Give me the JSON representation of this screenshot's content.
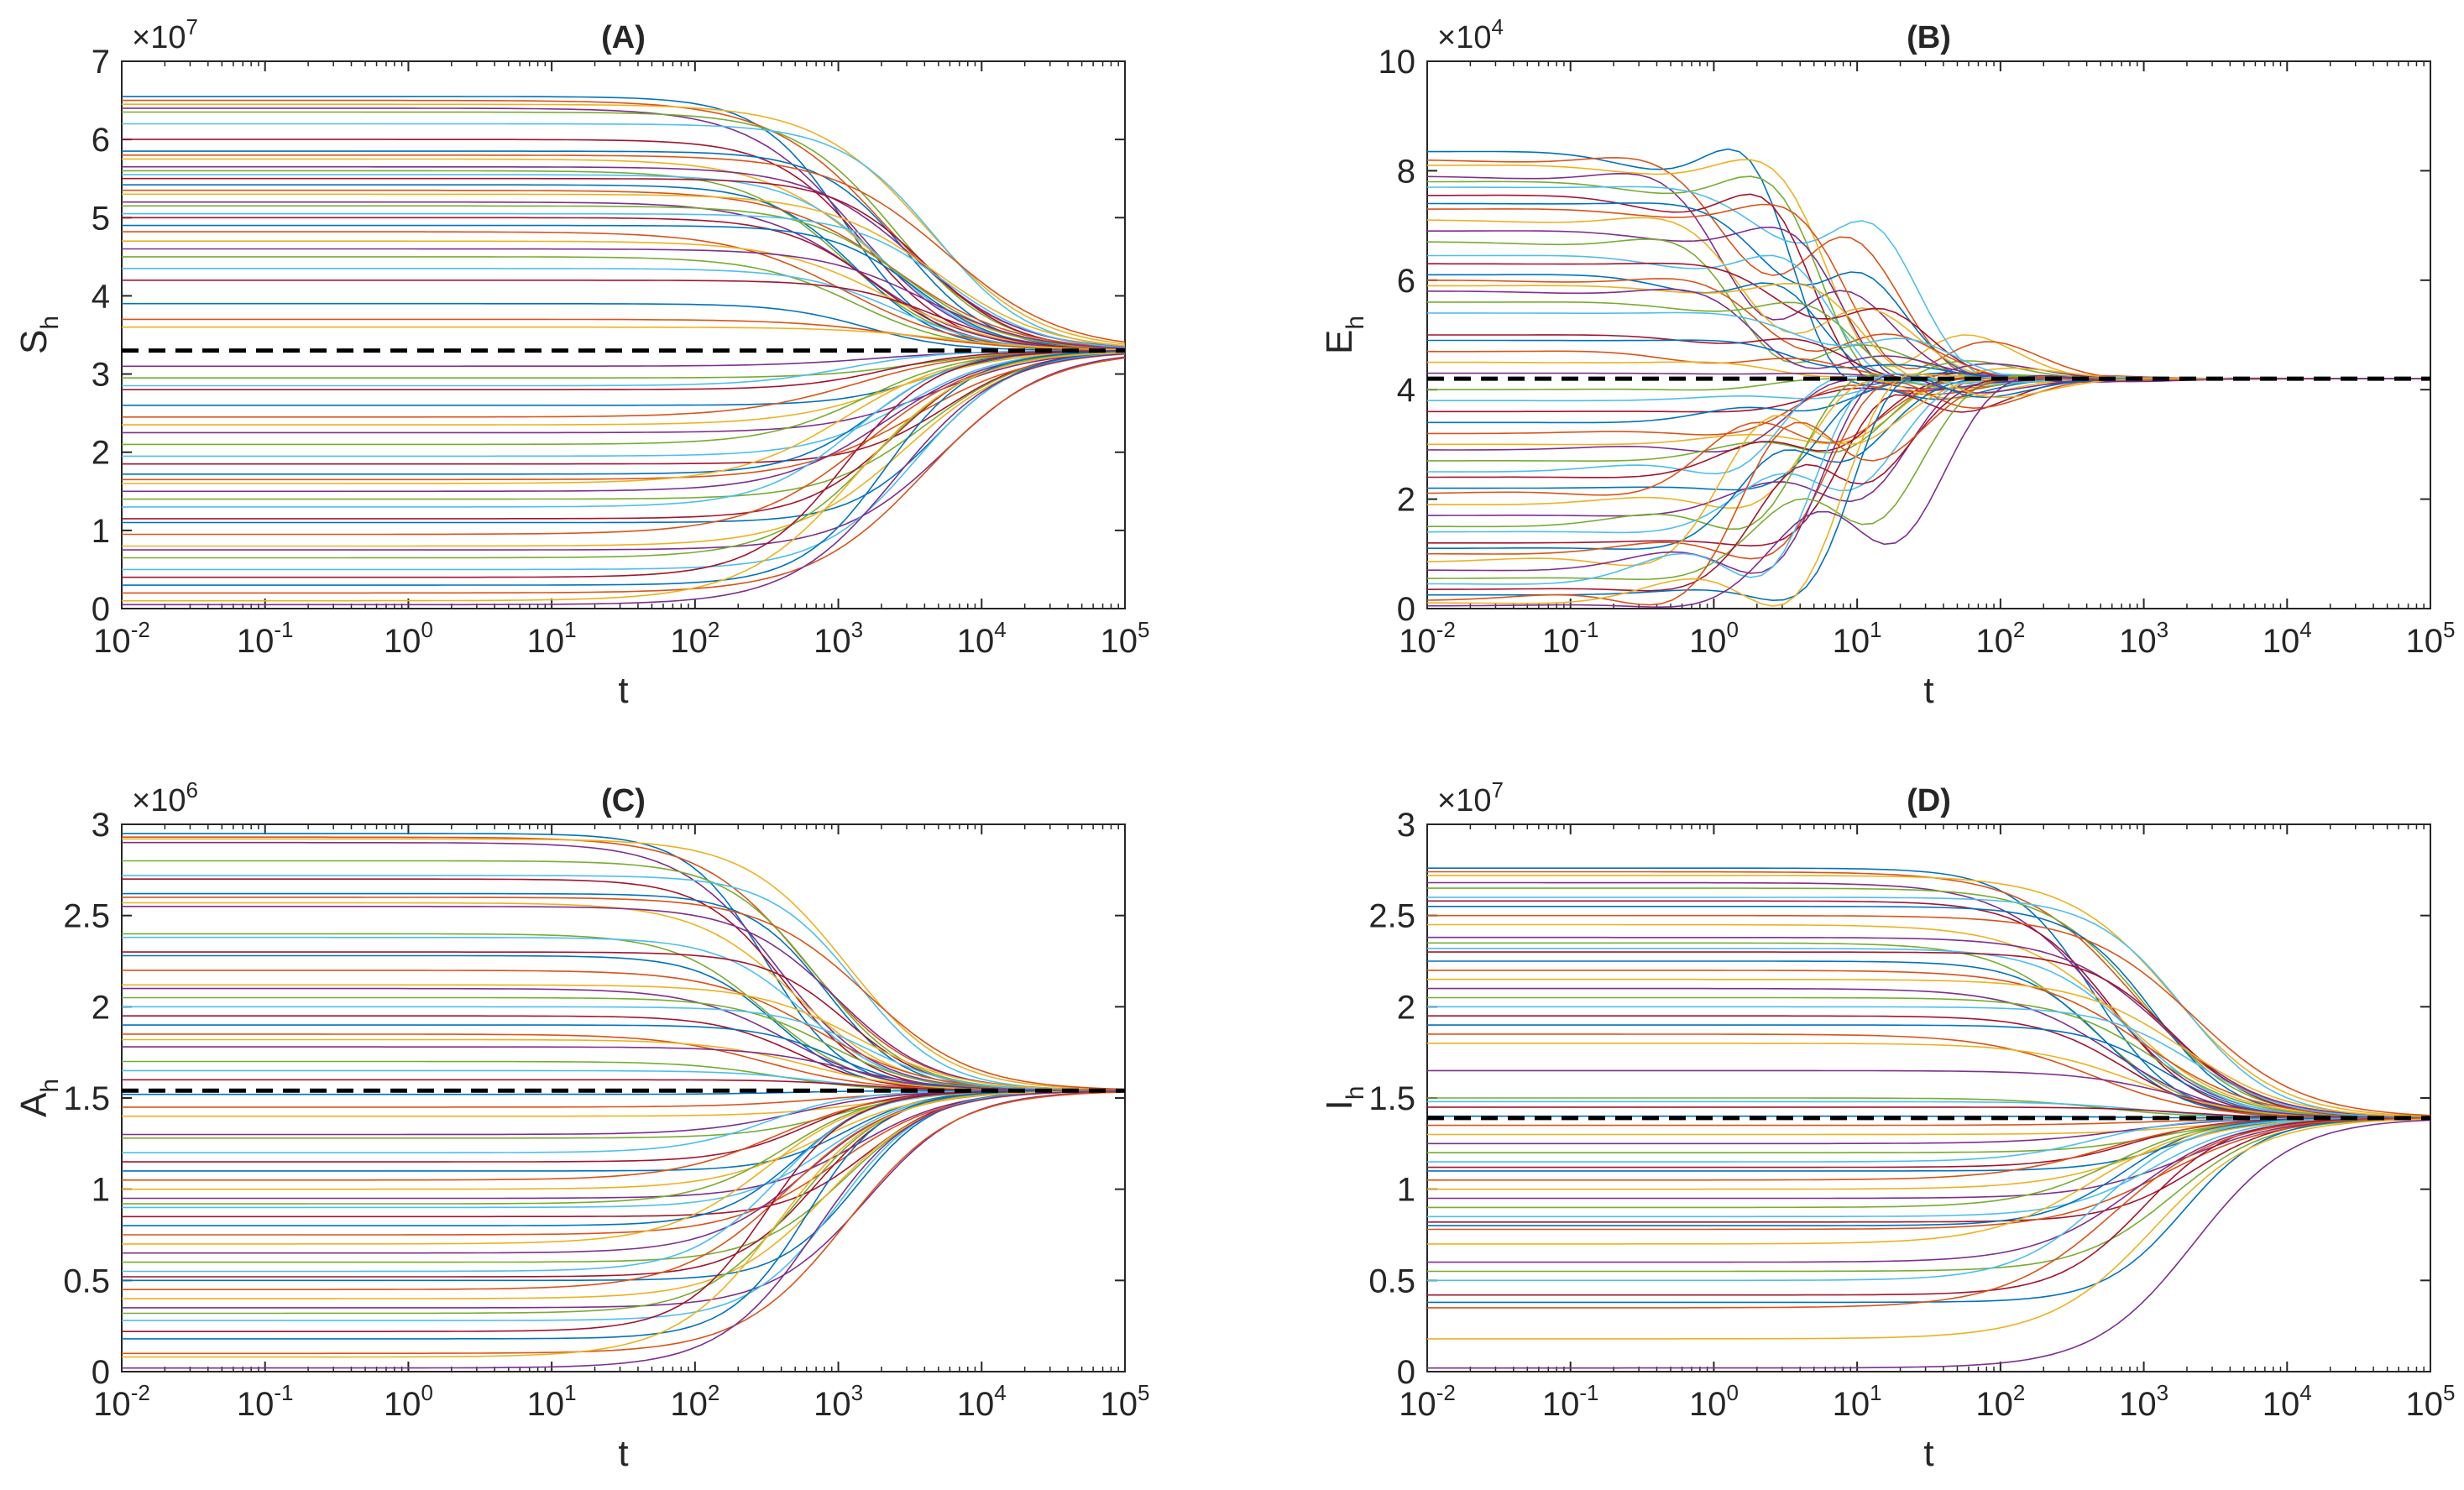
{
  "chart_data": [
    {
      "panel": "A",
      "type": "line",
      "title": "(A)",
      "xlabel": "t",
      "ylabel_main": "S",
      "ylabel_sub": "h",
      "xscale": "log",
      "xlim_exp": [
        -2,
        5
      ],
      "x_ticks": [
        {
          "base": "10",
          "exp": "-2"
        },
        {
          "base": "10",
          "exp": "-1"
        },
        {
          "base": "10",
          "exp": "0"
        },
        {
          "base": "10",
          "exp": "1"
        },
        {
          "base": "10",
          "exp": "2"
        },
        {
          "base": "10",
          "exp": "3"
        },
        {
          "base": "10",
          "exp": "4"
        },
        {
          "base": "10",
          "exp": "5"
        }
      ],
      "ylim": [
        0,
        7
      ],
      "y_ticks": [
        "0",
        "1",
        "2",
        "3",
        "4",
        "5",
        "6",
        "7"
      ],
      "multiplier": {
        "base": "×10",
        "exp": "7"
      },
      "equilibrium": 3.3,
      "transition": {
        "center_exp": 3.4,
        "width": 0.35
      },
      "series_initial_values": [
        6.55,
        6.5,
        6.45,
        6.4,
        6.35,
        6.2,
        6.0,
        5.85,
        5.8,
        5.75,
        5.65,
        5.6,
        5.55,
        5.5,
        5.42,
        5.35,
        5.3,
        5.2,
        5.15,
        5.05,
        5.0,
        4.9,
        4.82,
        4.7,
        4.6,
        4.5,
        4.35,
        4.2,
        3.9,
        3.7,
        3.6,
        3.1,
        2.95,
        2.85,
        2.8,
        2.6,
        2.45,
        2.35,
        2.25,
        2.1,
        1.95,
        1.85,
        1.72,
        1.65,
        1.6,
        1.5,
        1.4,
        1.3,
        1.15,
        1.1,
        0.95,
        0.8,
        0.75,
        0.65,
        0.5,
        0.4,
        0.3,
        0.2,
        0.1,
        0.05
      ]
    },
    {
      "panel": "B",
      "type": "line",
      "title": "(B)",
      "xlabel": "t",
      "ylabel_main": "E",
      "ylabel_sub": "h",
      "xscale": "log",
      "xlim_exp": [
        -2,
        5
      ],
      "x_ticks": [
        {
          "base": "10",
          "exp": "-2"
        },
        {
          "base": "10",
          "exp": "-1"
        },
        {
          "base": "10",
          "exp": "0"
        },
        {
          "base": "10",
          "exp": "1"
        },
        {
          "base": "10",
          "exp": "2"
        },
        {
          "base": "10",
          "exp": "3"
        },
        {
          "base": "10",
          "exp": "4"
        },
        {
          "base": "10",
          "exp": "5"
        }
      ],
      "ylim": [
        0,
        10
      ],
      "y_ticks": [
        "0",
        "2",
        "4",
        "6",
        "8",
        "10"
      ],
      "multiplier": {
        "base": "×10",
        "exp": "4"
      },
      "equilibrium": 4.2,
      "transition": {
        "center_exp": 0.8,
        "width": 0.35
      },
      "series_initial_values": [
        8.35,
        8.2,
        8.1,
        7.9,
        7.8,
        7.7,
        7.55,
        7.4,
        7.3,
        7.1,
        6.9,
        6.7,
        6.45,
        6.3,
        6.1,
        6.0,
        5.9,
        5.8,
        5.6,
        5.4,
        5.0,
        4.9,
        4.7,
        4.5,
        4.3,
        4.0,
        3.8,
        3.6,
        3.4,
        3.2,
        3.0,
        2.9,
        2.7,
        2.5,
        2.4,
        2.2,
        2.1,
        1.9,
        1.7,
        1.5,
        1.4,
        1.2,
        1.1,
        1.0,
        0.85,
        0.7,
        0.55,
        0.45,
        0.35,
        0.25,
        0.15,
        0.1,
        0.05
      ]
    },
    {
      "panel": "C",
      "type": "line",
      "title": "(C)",
      "xlabel": "t",
      "ylabel_main": "A",
      "ylabel_sub": "h",
      "xscale": "log",
      "xlim_exp": [
        -2,
        5
      ],
      "x_ticks": [
        {
          "base": "10",
          "exp": "-2"
        },
        {
          "base": "10",
          "exp": "-1"
        },
        {
          "base": "10",
          "exp": "0"
        },
        {
          "base": "10",
          "exp": "1"
        },
        {
          "base": "10",
          "exp": "2"
        },
        {
          "base": "10",
          "exp": "3"
        },
        {
          "base": "10",
          "exp": "4"
        },
        {
          "base": "10",
          "exp": "5"
        }
      ],
      "ylim": [
        0,
        3
      ],
      "y_ticks": [
        "0",
        "0.5",
        "1",
        "1.5",
        "2",
        "2.5",
        "3"
      ],
      "multiplier": {
        "base": "×10",
        "exp": "6"
      },
      "equilibrium": 1.54,
      "transition": {
        "center_exp": 2.85,
        "width": 0.32
      },
      "series_initial_values": [
        2.95,
        2.93,
        2.92,
        2.9,
        2.8,
        2.72,
        2.7,
        2.62,
        2.6,
        2.57,
        2.55,
        2.4,
        2.38,
        2.3,
        2.28,
        2.2,
        2.12,
        2.1,
        2.05,
        2.0,
        1.95,
        1.9,
        1.85,
        1.82,
        1.78,
        1.7,
        1.65,
        1.6,
        1.52,
        1.45,
        1.4,
        1.3,
        1.28,
        1.2,
        1.15,
        1.1,
        1.05,
        1.0,
        0.95,
        0.92,
        0.9,
        0.85,
        0.8,
        0.75,
        0.7,
        0.65,
        0.6,
        0.55,
        0.52,
        0.5,
        0.45,
        0.4,
        0.35,
        0.32,
        0.28,
        0.22,
        0.18,
        0.1,
        0.08,
        0.02
      ]
    },
    {
      "panel": "D",
      "type": "line",
      "title": "(D)",
      "xlabel": "t",
      "ylabel_main": "I",
      "ylabel_sub": "h",
      "xscale": "log",
      "xlim_exp": [
        -2,
        5
      ],
      "x_ticks": [
        {
          "base": "10",
          "exp": "-2"
        },
        {
          "base": "10",
          "exp": "-1"
        },
        {
          "base": "10",
          "exp": "0"
        },
        {
          "base": "10",
          "exp": "1"
        },
        {
          "base": "10",
          "exp": "2"
        },
        {
          "base": "10",
          "exp": "3"
        },
        {
          "base": "10",
          "exp": "4"
        },
        {
          "base": "10",
          "exp": "5"
        }
      ],
      "ylim": [
        0,
        3
      ],
      "y_ticks": [
        "0",
        "0.5",
        "1",
        "1.5",
        "2",
        "2.5",
        "3"
      ],
      "multiplier": {
        "base": "×10",
        "exp": "7"
      },
      "equilibrium": 1.39,
      "transition": {
        "center_exp": 3.0,
        "width": 0.33
      },
      "series_initial_values": [
        2.76,
        2.74,
        2.72,
        2.68,
        2.65,
        2.6,
        2.58,
        2.55,
        2.5,
        2.45,
        2.38,
        2.35,
        2.32,
        2.3,
        2.25,
        2.2,
        2.15,
        2.1,
        2.05,
        2.0,
        1.95,
        1.9,
        1.85,
        1.8,
        1.65,
        1.5,
        1.48,
        1.45,
        1.4,
        1.35,
        1.3,
        1.25,
        1.2,
        1.15,
        1.12,
        1.1,
        1.05,
        1.0,
        0.95,
        0.9,
        0.85,
        0.82,
        0.8,
        0.78,
        0.7,
        0.6,
        0.55,
        0.5,
        0.42,
        0.38,
        0.35,
        0.18,
        0.02
      ]
    }
  ],
  "series_colors": [
    "#0072BD",
    "#D95319",
    "#EDB120",
    "#7E2F8E",
    "#77AC30",
    "#4DBEEE",
    "#A2142F"
  ],
  "equilibrium_color": "#000000"
}
